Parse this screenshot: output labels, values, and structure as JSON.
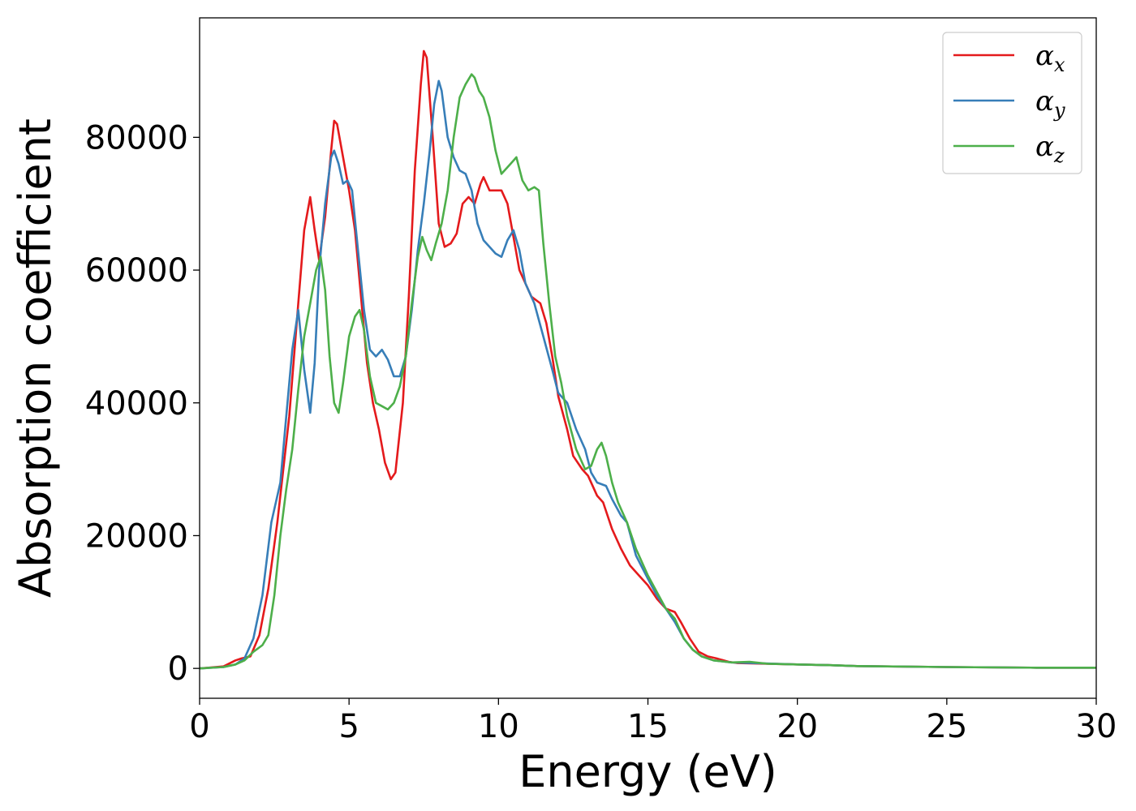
{
  "chart_data": {
    "type": "line",
    "xlabel": "Energy (eV)",
    "ylabel": "Absorption coefficient",
    "xlim": [
      0,
      30
    ],
    "ylim": [
      -4500,
      98000
    ],
    "xticks": [
      0,
      5,
      10,
      15,
      20,
      25,
      30
    ],
    "xtick_labels": [
      "0",
      "5",
      "10",
      "15",
      "20",
      "25",
      "30"
    ],
    "yticks": [
      0,
      20000,
      40000,
      60000,
      80000
    ],
    "ytick_labels": [
      "0",
      "20000",
      "40000",
      "60000",
      "80000"
    ],
    "grid": false,
    "legend_position": "top-right",
    "series": [
      {
        "name": "α",
        "subscript": "x",
        "color": "#e41a1c",
        "points": [
          [
            0,
            0
          ],
          [
            0.8,
            300
          ],
          [
            1.2,
            1200
          ],
          [
            1.4,
            1500
          ],
          [
            1.7,
            1800
          ],
          [
            2.0,
            5000
          ],
          [
            2.3,
            12000
          ],
          [
            2.6,
            22000
          ],
          [
            3.0,
            38000
          ],
          [
            3.3,
            55000
          ],
          [
            3.5,
            66000
          ],
          [
            3.7,
            71000
          ],
          [
            3.85,
            66000
          ],
          [
            4.0,
            61500
          ],
          [
            4.2,
            68000
          ],
          [
            4.4,
            78000
          ],
          [
            4.5,
            82500
          ],
          [
            4.6,
            82000
          ],
          [
            4.8,
            77000
          ],
          [
            5.0,
            72000
          ],
          [
            5.2,
            66000
          ],
          [
            5.4,
            56000
          ],
          [
            5.6,
            46000
          ],
          [
            5.8,
            40000
          ],
          [
            6.0,
            36000
          ],
          [
            6.2,
            31000
          ],
          [
            6.4,
            28500
          ],
          [
            6.55,
            29500
          ],
          [
            6.8,
            40000
          ],
          [
            7.0,
            56000
          ],
          [
            7.2,
            75000
          ],
          [
            7.4,
            88000
          ],
          [
            7.5,
            93000
          ],
          [
            7.6,
            92000
          ],
          [
            7.8,
            80000
          ],
          [
            8.0,
            67000
          ],
          [
            8.2,
            63500
          ],
          [
            8.4,
            64000
          ],
          [
            8.6,
            65500
          ],
          [
            8.8,
            70000
          ],
          [
            9.0,
            71000
          ],
          [
            9.2,
            70000
          ],
          [
            9.4,
            73000
          ],
          [
            9.5,
            74000
          ],
          [
            9.7,
            72000
          ],
          [
            9.9,
            72000
          ],
          [
            10.1,
            72000
          ],
          [
            10.3,
            70000
          ],
          [
            10.5,
            65000
          ],
          [
            10.7,
            60000
          ],
          [
            10.9,
            58000
          ],
          [
            11.1,
            56000
          ],
          [
            11.4,
            55000
          ],
          [
            11.6,
            52000
          ],
          [
            11.8,
            47000
          ],
          [
            12.0,
            41000
          ],
          [
            12.3,
            36000
          ],
          [
            12.5,
            32000
          ],
          [
            12.8,
            30000
          ],
          [
            13.0,
            29000
          ],
          [
            13.3,
            26000
          ],
          [
            13.5,
            25000
          ],
          [
            13.8,
            21000
          ],
          [
            14.1,
            18000
          ],
          [
            14.4,
            15500
          ],
          [
            14.7,
            14000
          ],
          [
            15.0,
            12500
          ],
          [
            15.3,
            10500
          ],
          [
            15.6,
            9000
          ],
          [
            15.9,
            8500
          ],
          [
            16.1,
            7000
          ],
          [
            16.4,
            4500
          ],
          [
            16.7,
            2500
          ],
          [
            17.0,
            1800
          ],
          [
            17.3,
            1500
          ],
          [
            17.7,
            1000
          ],
          [
            18.0,
            800
          ],
          [
            19.0,
            700
          ],
          [
            20.0,
            600
          ],
          [
            21.0,
            500
          ],
          [
            22.0,
            350
          ],
          [
            25.0,
            200
          ],
          [
            28.0,
            100
          ],
          [
            30.0,
            100
          ]
        ]
      },
      {
        "name": "α",
        "subscript": "y",
        "color": "#377eb8",
        "points": [
          [
            0,
            0
          ],
          [
            0.8,
            200
          ],
          [
            1.2,
            600
          ],
          [
            1.5,
            1500
          ],
          [
            1.8,
            4500
          ],
          [
            2.1,
            11000
          ],
          [
            2.4,
            22000
          ],
          [
            2.7,
            28000
          ],
          [
            2.9,
            38000
          ],
          [
            3.1,
            48000
          ],
          [
            3.3,
            54000
          ],
          [
            3.5,
            45000
          ],
          [
            3.7,
            38500
          ],
          [
            3.85,
            46000
          ],
          [
            4.0,
            60000
          ],
          [
            4.2,
            70000
          ],
          [
            4.4,
            77000
          ],
          [
            4.5,
            78000
          ],
          [
            4.65,
            76000
          ],
          [
            4.8,
            73000
          ],
          [
            4.95,
            73500
          ],
          [
            5.1,
            72000
          ],
          [
            5.3,
            63000
          ],
          [
            5.5,
            54000
          ],
          [
            5.7,
            48000
          ],
          [
            5.9,
            47000
          ],
          [
            6.1,
            48000
          ],
          [
            6.3,
            46500
          ],
          [
            6.5,
            44000
          ],
          [
            6.7,
            44000
          ],
          [
            6.9,
            47000
          ],
          [
            7.1,
            54000
          ],
          [
            7.3,
            63000
          ],
          [
            7.5,
            70000
          ],
          [
            7.7,
            78000
          ],
          [
            7.85,
            85000
          ],
          [
            8.0,
            88500
          ],
          [
            8.1,
            87000
          ],
          [
            8.3,
            80000
          ],
          [
            8.5,
            77000
          ],
          [
            8.7,
            75000
          ],
          [
            8.9,
            74500
          ],
          [
            9.1,
            72000
          ],
          [
            9.3,
            67000
          ],
          [
            9.5,
            64500
          ],
          [
            9.7,
            63500
          ],
          [
            9.9,
            62500
          ],
          [
            10.1,
            62000
          ],
          [
            10.3,
            64500
          ],
          [
            10.5,
            66000
          ],
          [
            10.7,
            63000
          ],
          [
            10.9,
            58000
          ],
          [
            11.2,
            55000
          ],
          [
            11.5,
            50000
          ],
          [
            11.8,
            45000
          ],
          [
            12.0,
            41500
          ],
          [
            12.3,
            40000
          ],
          [
            12.6,
            36000
          ],
          [
            12.9,
            33000
          ],
          [
            13.1,
            29500
          ],
          [
            13.3,
            28000
          ],
          [
            13.6,
            27500
          ],
          [
            13.8,
            25500
          ],
          [
            14.1,
            23000
          ],
          [
            14.3,
            22000
          ],
          [
            14.6,
            17000
          ],
          [
            15.0,
            13500
          ],
          [
            15.3,
            11000
          ],
          [
            15.6,
            9000
          ],
          [
            15.9,
            7000
          ],
          [
            16.2,
            4500
          ],
          [
            16.5,
            2800
          ],
          [
            16.8,
            1800
          ],
          [
            17.2,
            1200
          ],
          [
            17.8,
            900
          ],
          [
            18.5,
            800
          ],
          [
            20.0,
            600
          ],
          [
            21.0,
            500
          ],
          [
            22.0,
            350
          ],
          [
            25.0,
            200
          ],
          [
            28.0,
            100
          ],
          [
            30.0,
            100
          ]
        ]
      },
      {
        "name": "α",
        "subscript": "z",
        "color": "#4daf4a",
        "points": [
          [
            0,
            0
          ],
          [
            0.8,
            200
          ],
          [
            1.2,
            600
          ],
          [
            1.5,
            1200
          ],
          [
            1.8,
            2500
          ],
          [
            2.1,
            3500
          ],
          [
            2.3,
            5000
          ],
          [
            2.5,
            11000
          ],
          [
            2.7,
            20000
          ],
          [
            2.9,
            27000
          ],
          [
            3.1,
            33000
          ],
          [
            3.3,
            42000
          ],
          [
            3.5,
            50000
          ],
          [
            3.7,
            55000
          ],
          [
            3.9,
            60000
          ],
          [
            4.05,
            62000
          ],
          [
            4.2,
            57000
          ],
          [
            4.35,
            47000
          ],
          [
            4.5,
            40000
          ],
          [
            4.65,
            38500
          ],
          [
            4.8,
            43000
          ],
          [
            5.0,
            50000
          ],
          [
            5.2,
            53000
          ],
          [
            5.35,
            54000
          ],
          [
            5.5,
            51000
          ],
          [
            5.7,
            44000
          ],
          [
            5.9,
            40000
          ],
          [
            6.1,
            39500
          ],
          [
            6.3,
            39000
          ],
          [
            6.5,
            40000
          ],
          [
            6.7,
            42500
          ],
          [
            6.9,
            47000
          ],
          [
            7.1,
            55000
          ],
          [
            7.3,
            62000
          ],
          [
            7.45,
            65000
          ],
          [
            7.6,
            63000
          ],
          [
            7.75,
            61500
          ],
          [
            7.9,
            64000
          ],
          [
            8.1,
            67000
          ],
          [
            8.3,
            72000
          ],
          [
            8.5,
            80000
          ],
          [
            8.7,
            86000
          ],
          [
            8.9,
            88000
          ],
          [
            9.1,
            89500
          ],
          [
            9.2,
            89000
          ],
          [
            9.35,
            87000
          ],
          [
            9.5,
            86000
          ],
          [
            9.7,
            83000
          ],
          [
            9.9,
            78000
          ],
          [
            10.1,
            74500
          ],
          [
            10.3,
            75500
          ],
          [
            10.5,
            76500
          ],
          [
            10.6,
            77000
          ],
          [
            10.8,
            73500
          ],
          [
            11.0,
            72000
          ],
          [
            11.2,
            72500
          ],
          [
            11.35,
            72000
          ],
          [
            11.5,
            64000
          ],
          [
            11.7,
            55000
          ],
          [
            11.9,
            47000
          ],
          [
            12.1,
            43000
          ],
          [
            12.3,
            38000
          ],
          [
            12.6,
            33000
          ],
          [
            12.9,
            30000
          ],
          [
            13.1,
            30500
          ],
          [
            13.3,
            33000
          ],
          [
            13.45,
            34000
          ],
          [
            13.6,
            32000
          ],
          [
            13.8,
            28000
          ],
          [
            14.0,
            25000
          ],
          [
            14.3,
            22000
          ],
          [
            14.6,
            18000
          ],
          [
            15.0,
            14000
          ],
          [
            15.3,
            11500
          ],
          [
            15.6,
            9000
          ],
          [
            15.9,
            7500
          ],
          [
            16.2,
            4500
          ],
          [
            16.5,
            2800
          ],
          [
            16.8,
            1800
          ],
          [
            17.2,
            1200
          ],
          [
            17.8,
            900
          ],
          [
            18.4,
            1000
          ],
          [
            19.0,
            700
          ],
          [
            20.0,
            600
          ],
          [
            21.0,
            500
          ],
          [
            22.0,
            350
          ],
          [
            25.0,
            200
          ],
          [
            28.0,
            100
          ],
          [
            30.0,
            100
          ]
        ]
      }
    ]
  }
}
